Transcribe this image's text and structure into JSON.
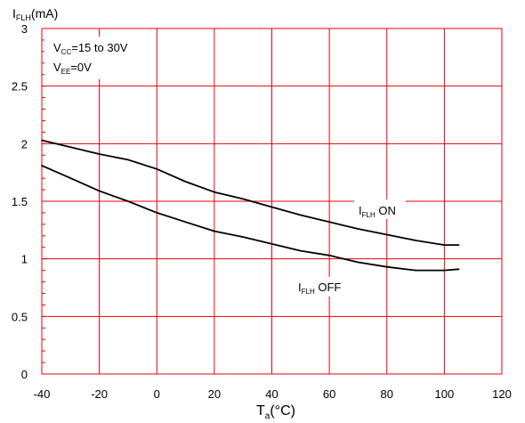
{
  "chart_data": {
    "type": "line",
    "ylabel": {
      "main": "I",
      "sub": "FLH",
      "unit": "(mA)"
    },
    "xlabel": {
      "main": "T",
      "sub": "a",
      "unit": "(°C)"
    },
    "xlim": [
      -40,
      120
    ],
    "ylim": [
      0,
      3
    ],
    "x_ticks": [
      -40,
      -20,
      0,
      20,
      40,
      60,
      80,
      100,
      120
    ],
    "y_ticks": [
      0,
      0.5,
      1,
      1.5,
      2,
      2.5,
      3
    ],
    "x_tick_labels": [
      "-40",
      "-20",
      "0",
      "20",
      "40",
      "60",
      "80",
      "100",
      "120"
    ],
    "y_tick_labels": [
      "0",
      "0.5",
      "1",
      "1.5",
      "2",
      "2.5",
      "3"
    ],
    "grid": true,
    "grid_color": "#e8000b",
    "line_color": "#000000",
    "conditions": [
      {
        "main": "V",
        "sub": "CC",
        "rest": "=15 to 30V"
      },
      {
        "main": "V",
        "sub": "EE",
        "rest": "=0V"
      }
    ],
    "series": [
      {
        "name": "I_FLH ON",
        "label": {
          "main": "I",
          "sub": "FLH",
          "rest": " ON"
        },
        "x": [
          -40,
          -30,
          -20,
          -10,
          0,
          10,
          20,
          30,
          40,
          50,
          60,
          70,
          80,
          90,
          100,
          105
        ],
        "y": [
          2.03,
          1.97,
          1.91,
          1.86,
          1.78,
          1.67,
          1.58,
          1.52,
          1.45,
          1.38,
          1.32,
          1.26,
          1.21,
          1.16,
          1.12,
          1.12
        ]
      },
      {
        "name": "I_FLH OFF",
        "label": {
          "main": "I",
          "sub": "FLH",
          "rest": " OFF"
        },
        "x": [
          -40,
          -30,
          -20,
          -10,
          0,
          10,
          20,
          30,
          40,
          50,
          60,
          70,
          80,
          90,
          100,
          105
        ],
        "y": [
          1.81,
          1.7,
          1.59,
          1.5,
          1.4,
          1.32,
          1.24,
          1.19,
          1.13,
          1.07,
          1.03,
          0.97,
          0.93,
          0.9,
          0.9,
          0.91
        ]
      }
    ]
  }
}
